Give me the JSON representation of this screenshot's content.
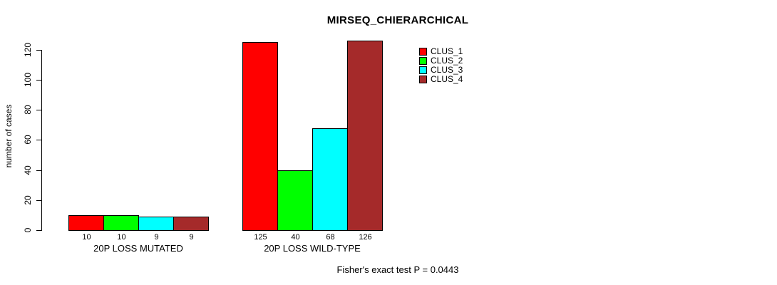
{
  "chart_data": {
    "type": "bar",
    "title": "MIRSEQ_CHIERARCHICAL",
    "xlabel": "",
    "ylabel": "number of cases",
    "categories": [
      "20P LOSS MUTATED",
      "20P LOSS WILD-TYPE"
    ],
    "series": [
      {
        "name": "CLUS_1",
        "color": "#FF0000",
        "values": [
          10,
          125
        ]
      },
      {
        "name": "CLUS_2",
        "color": "#00FF00",
        "values": [
          10,
          40
        ]
      },
      {
        "name": "CLUS_3",
        "color": "#00FFFF",
        "values": [
          9,
          68
        ]
      },
      {
        "name": "CLUS_4",
        "color": "#A52A2A",
        "values": [
          9,
          126
        ]
      }
    ],
    "yticks": [
      0,
      20,
      40,
      60,
      80,
      100,
      120
    ],
    "ylim": [
      0,
      126
    ],
    "bar_value_labels_shown": true,
    "annotation": "Fisher's exact test P = 0.0443",
    "legend_position": "top-right",
    "grid": false,
    "axis_color": "#000000",
    "bar_border_color": "#000000",
    "background_color": "#FFFFFF"
  }
}
